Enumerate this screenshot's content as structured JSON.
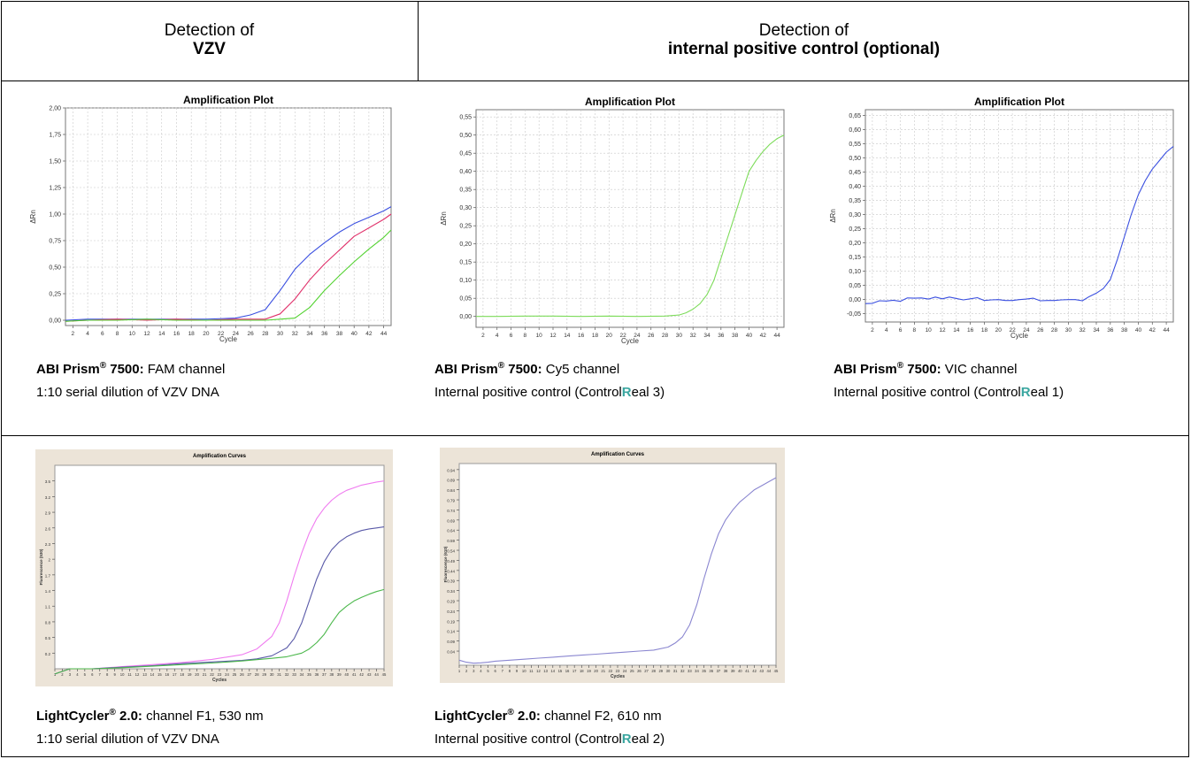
{
  "header": {
    "left_line1": "Detection of",
    "left_line2": "VZV",
    "right_line1": "Detection of",
    "right_line2": "internal positive control (optional)"
  },
  "captions": {
    "abi_fam": {
      "instrument": "ABI Prism",
      "model": " 7500:",
      "channel": " FAM channel",
      "desc": "1:10 serial dilution of VZV DNA"
    },
    "abi_cy5": {
      "instrument": "ABI Prism",
      "model": " 7500:",
      "channel": " Cy5 channel",
      "desc_pre": "Internal positive control (Control",
      "desc_r": "R",
      "desc_post": "eal 3)"
    },
    "abi_vic": {
      "instrument": "ABI Prism",
      "model": " 7500:",
      "channel": " VIC channel",
      "desc_pre": "Internal positive control (Control",
      "desc_r": "R",
      "desc_post": "eal 1)"
    },
    "lc_f1": {
      "instrument": "LightCycler",
      "model": " 2.0:",
      "channel": " channel F1, 530 nm",
      "desc": "1:10 serial dilution of VZV DNA"
    },
    "lc_f2": {
      "instrument": "LightCycler",
      "model": " 2.0:",
      "channel": " channel F2, 610 nm",
      "desc_pre": "Internal positive control (Control",
      "desc_r": "R",
      "desc_post": "eal 2)"
    },
    "reg": "®"
  },
  "chart_data": [
    {
      "id": "abi_fam",
      "type": "line",
      "title": "Amplification Plot",
      "xlabel": "Cycle",
      "ylabel": "ΔRn",
      "xlim": [
        1,
        45
      ],
      "ylim": [
        -0.05,
        2.0
      ],
      "xticks": [
        2,
        4,
        6,
        8,
        10,
        12,
        14,
        16,
        18,
        20,
        22,
        24,
        26,
        28,
        30,
        32,
        34,
        36,
        38,
        40,
        42,
        44
      ],
      "yticks": [
        0,
        0.25,
        0.5,
        0.75,
        1.0,
        1.25,
        1.5,
        1.75,
        2.0
      ],
      "ytick_labels": [
        "0,00",
        "0,25",
        "0,50",
        "0,75",
        "1,00",
        "1,25",
        "1,50",
        "1,75",
        "2,00"
      ],
      "grid": true,
      "series": [
        {
          "color": "#3a4fe0",
          "x": [
            1,
            4,
            8,
            12,
            16,
            20,
            24,
            26,
            28,
            30,
            32,
            34,
            36,
            38,
            40,
            42,
            44,
            45
          ],
          "values": [
            0,
            0.01,
            0.01,
            0.01,
            0.01,
            0.01,
            0.02,
            0.05,
            0.1,
            0.28,
            0.48,
            0.62,
            0.73,
            0.83,
            0.91,
            0.97,
            1.03,
            1.07
          ]
        },
        {
          "color": "#e0306a",
          "x": [
            1,
            4,
            8,
            12,
            16,
            20,
            24,
            26,
            28,
            30,
            32,
            34,
            36,
            38,
            40,
            42,
            44,
            45
          ],
          "values": [
            -0.01,
            0,
            0.01,
            0,
            0.01,
            0,
            0.01,
            0.01,
            0.01,
            0.06,
            0.2,
            0.38,
            0.53,
            0.66,
            0.79,
            0.87,
            0.95,
            1.0
          ]
        },
        {
          "color": "#52d230",
          "x": [
            1,
            4,
            8,
            12,
            16,
            20,
            24,
            28,
            30,
            32,
            34,
            36,
            38,
            40,
            42,
            44,
            45
          ],
          "values": [
            -0.01,
            0,
            0,
            0.01,
            0,
            0,
            0,
            0,
            0.01,
            0.02,
            0.12,
            0.28,
            0.42,
            0.55,
            0.67,
            0.78,
            0.85
          ]
        }
      ]
    },
    {
      "id": "abi_cy5",
      "type": "line",
      "title": "Amplification Plot",
      "xlabel": "Cycle",
      "ylabel": "ΔRn",
      "xlim": [
        1,
        45
      ],
      "ylim": [
        -0.03,
        0.57
      ],
      "xticks": [
        2,
        4,
        6,
        8,
        10,
        12,
        14,
        16,
        18,
        20,
        22,
        24,
        26,
        28,
        30,
        32,
        34,
        36,
        38,
        40,
        42,
        44
      ],
      "yticks": [
        0,
        0.05,
        0.1,
        0.15,
        0.2,
        0.25,
        0.3,
        0.35,
        0.4,
        0.45,
        0.5,
        0.55
      ],
      "ytick_labels": [
        "0,00",
        "0,05",
        "0,10",
        "0,15",
        "0,20",
        "0,25",
        "0,30",
        "0,35",
        "0,40",
        "0,45",
        "0,50",
        "0,55"
      ],
      "grid": true,
      "series": [
        {
          "color": "#7ddc5a",
          "x": [
            1,
            4,
            8,
            12,
            16,
            20,
            24,
            28,
            30,
            31,
            32,
            33,
            34,
            35,
            36,
            37,
            38,
            39,
            40,
            41,
            42,
            43,
            44,
            45
          ],
          "values": [
            0,
            0,
            0.001,
            0.001,
            0,
            0.001,
            0,
            0.001,
            0.004,
            0.01,
            0.02,
            0.035,
            0.06,
            0.1,
            0.16,
            0.22,
            0.28,
            0.34,
            0.4,
            0.43,
            0.455,
            0.475,
            0.49,
            0.5
          ]
        }
      ]
    },
    {
      "id": "abi_vic",
      "type": "line",
      "title": "Amplification Plot",
      "xlabel": "Cycle",
      "ylabel": "ΔRn",
      "xlim": [
        1,
        45
      ],
      "ylim": [
        -0.08,
        0.67
      ],
      "xticks": [
        2,
        4,
        6,
        8,
        10,
        12,
        14,
        16,
        18,
        20,
        22,
        24,
        26,
        28,
        30,
        32,
        34,
        36,
        38,
        40,
        42,
        44
      ],
      "yticks": [
        -0.05,
        0,
        0.05,
        0.1,
        0.15,
        0.2,
        0.25,
        0.3,
        0.35,
        0.4,
        0.45,
        0.5,
        0.55,
        0.6,
        0.65
      ],
      "ytick_labels": [
        "-0,05",
        "0,00",
        "0,05",
        "0,10",
        "0,15",
        "0,20",
        "0,25",
        "0,30",
        "0,35",
        "0,40",
        "0,45",
        "0,50",
        "0,55",
        "0,60",
        "0,65"
      ],
      "grid": true,
      "series": [
        {
          "color": "#3a4fe0",
          "x": [
            1,
            2,
            3,
            4,
            5,
            6,
            7,
            8,
            9,
            10,
            11,
            12,
            13,
            14,
            15,
            16,
            17,
            18,
            19,
            20,
            21,
            22,
            23,
            24,
            25,
            26,
            27,
            28,
            29,
            30,
            31,
            32,
            33,
            34,
            35,
            36,
            37,
            38,
            39,
            40,
            41,
            42,
            43,
            44,
            45
          ],
          "values": [
            -0.015,
            -0.014,
            -0.005,
            -0.006,
            -0.003,
            -0.007,
            0.005,
            0.004,
            0.005,
            0.001,
            0.008,
            0.002,
            0.008,
            0.003,
            -0.002,
            0.002,
            0.006,
            -0.004,
            -0.002,
            -0.001,
            -0.004,
            -0.004,
            -0.001,
            0.001,
            0.004,
            -0.005,
            -0.004,
            -0.004,
            -0.002,
            -0.001,
            -0.001,
            -0.005,
            0.01,
            0.022,
            0.038,
            0.07,
            0.14,
            0.22,
            0.3,
            0.37,
            0.42,
            0.46,
            0.49,
            0.52,
            0.54
          ]
        }
      ]
    },
    {
      "id": "lc_f1",
      "type": "line",
      "title": "Amplification Curves",
      "xlabel": "Cycles",
      "ylabel": "Fluorescence (530)",
      "xlim": [
        1,
        45
      ],
      "ylim": [
        -0.1,
        3.8
      ],
      "xticks": [
        1,
        2,
        3,
        4,
        5,
        6,
        7,
        8,
        9,
        10,
        11,
        12,
        13,
        14,
        15,
        16,
        17,
        18,
        19,
        20,
        21,
        22,
        23,
        24,
        25,
        26,
        27,
        28,
        29,
        30,
        31,
        32,
        33,
        34,
        35,
        36,
        37,
        38,
        39,
        40,
        41,
        42,
        43,
        44,
        45
      ],
      "yticks": [
        0.2,
        0.5,
        0.8,
        1.1,
        1.4,
        1.7,
        2,
        2.3,
        2.6,
        2.9,
        3.2,
        3.5
      ],
      "ytick_labels": [
        "0.2",
        "0.5",
        "0.8",
        "1.1",
        "1.4",
        "1.7",
        "2",
        "2.3",
        "2.6",
        "2.9",
        "3.2",
        "3.5"
      ],
      "grid": false,
      "series": [
        {
          "color": "#f07cf0",
          "x": [
            1,
            3,
            6,
            10,
            14,
            18,
            22,
            26,
            28,
            30,
            31,
            32,
            33,
            34,
            35,
            36,
            37,
            38,
            39,
            40,
            42,
            44,
            45
          ],
          "values": [
            -0.2,
            -0.1,
            -0.1,
            -0.06,
            -0.02,
            0.02,
            0.08,
            0.17,
            0.28,
            0.52,
            0.78,
            1.2,
            1.68,
            2.12,
            2.5,
            2.78,
            2.98,
            3.13,
            3.24,
            3.32,
            3.42,
            3.48,
            3.5
          ]
        },
        {
          "color": "#5a5aa8",
          "x": [
            1,
            3,
            6,
            10,
            14,
            18,
            22,
            26,
            28,
            30,
            32,
            33,
            34,
            35,
            36,
            37,
            38,
            39,
            40,
            41,
            42,
            43,
            44,
            45
          ],
          "values": [
            -0.2,
            -0.1,
            -0.1,
            -0.07,
            -0.04,
            0,
            0.03,
            0.06,
            0.09,
            0.15,
            0.3,
            0.48,
            0.78,
            1.2,
            1.62,
            1.95,
            2.18,
            2.33,
            2.43,
            2.5,
            2.55,
            2.58,
            2.6,
            2.62
          ]
        },
        {
          "color": "#4cb84c",
          "x": [
            1,
            3,
            6,
            10,
            14,
            18,
            22,
            26,
            30,
            32,
            34,
            35,
            36,
            37,
            38,
            39,
            40,
            41,
            42,
            43,
            44,
            45
          ],
          "values": [
            -0.2,
            -0.1,
            -0.1,
            -0.08,
            -0.05,
            -0.02,
            0.01,
            0.05,
            0.1,
            0.13,
            0.2,
            0.28,
            0.4,
            0.56,
            0.78,
            0.98,
            1.1,
            1.2,
            1.27,
            1.33,
            1.38,
            1.42
          ]
        }
      ]
    },
    {
      "id": "lc_f2",
      "type": "line",
      "title": "Amplification Curves",
      "xlabel": "Cycles",
      "ylabel": "Fluorescence (610)",
      "xlim": [
        1,
        45
      ],
      "ylim": [
        -0.03,
        0.97
      ],
      "xticks": [
        1,
        2,
        3,
        4,
        5,
        6,
        7,
        8,
        9,
        10,
        11,
        12,
        13,
        14,
        15,
        16,
        17,
        18,
        19,
        20,
        21,
        22,
        23,
        24,
        25,
        26,
        27,
        28,
        29,
        30,
        31,
        32,
        33,
        34,
        35,
        36,
        37,
        38,
        39,
        40,
        41,
        42,
        43,
        44,
        45
      ],
      "yticks": [
        0.04,
        0.09,
        0.14,
        0.19,
        0.24,
        0.29,
        0.34,
        0.39,
        0.44,
        0.49,
        0.54,
        0.59,
        0.64,
        0.69,
        0.74,
        0.79,
        0.84,
        0.89,
        0.94
      ],
      "ytick_labels": [
        "0.04",
        "0.09",
        "0.14",
        "0.19",
        "0.24",
        "0.29",
        "0.34",
        "0.39",
        "0.44",
        "0.49",
        "0.54",
        "0.59",
        "0.64",
        "0.69",
        "0.74",
        "0.79",
        "0.84",
        "0.89",
        "0.94"
      ],
      "grid": false,
      "series": [
        {
          "color": "#8a86d0",
          "x": [
            1,
            2,
            3,
            4,
            5,
            6,
            8,
            10,
            12,
            14,
            16,
            18,
            20,
            22,
            24,
            26,
            28,
            30,
            31,
            32,
            33,
            34,
            35,
            36,
            37,
            38,
            39,
            40,
            41,
            42,
            43,
            44,
            45
          ],
          "values": [
            -0.005,
            -0.015,
            -0.02,
            -0.018,
            -0.015,
            -0.01,
            -0.005,
            0,
            0.005,
            0.01,
            0.015,
            0.02,
            0.025,
            0.03,
            0.035,
            0.04,
            0.045,
            0.06,
            0.08,
            0.11,
            0.17,
            0.27,
            0.4,
            0.52,
            0.62,
            0.69,
            0.74,
            0.78,
            0.81,
            0.84,
            0.86,
            0.88,
            0.9
          ]
        }
      ]
    }
  ]
}
